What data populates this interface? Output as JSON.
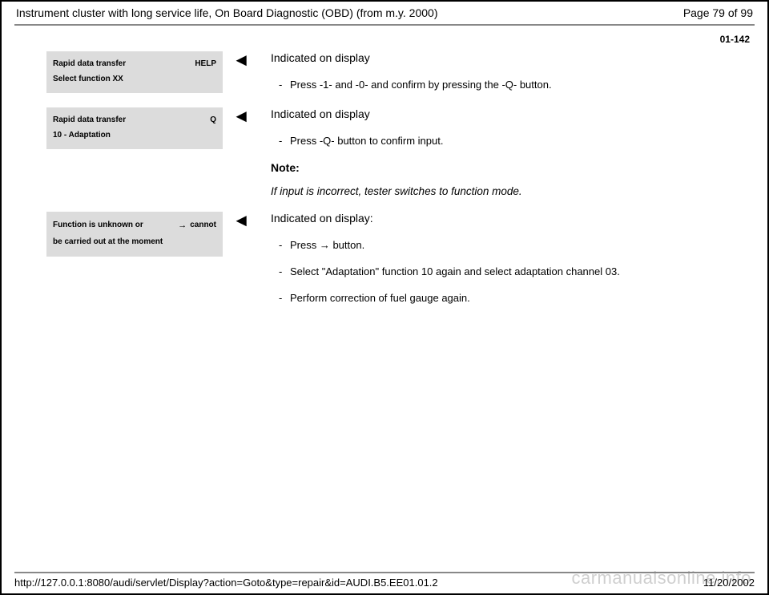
{
  "header": {
    "title": "Instrument cluster with long service life, On Board Diagnostic (OBD) (from m.y. 2000)",
    "page_label": "Page 79 of 99"
  },
  "section_number": "01-142",
  "blocks": [
    {
      "display": {
        "line1_left": "Rapid data transfer",
        "line1_right": "HELP",
        "line2_left": "Select function XX",
        "line2_right": ""
      },
      "heading": "Indicated on display",
      "bullets": [
        "Press -1- and -0- and confirm by pressing the -Q- button."
      ]
    },
    {
      "display": {
        "line1_left": "Rapid data transfer",
        "line1_right": "Q",
        "line2_left": "10 - Adaptation",
        "line2_right": ""
      },
      "heading": "Indicated on display",
      "bullets": [
        "Press -Q- button to confirm input."
      ],
      "note_label": "Note:",
      "note_text": "If input is incorrect, tester switches to function mode."
    },
    {
      "display": {
        "line1_left": "Function is unknown or",
        "line1_right_arrow": "→",
        "line1_right_text": "cannot",
        "line2_left": "be carried out at the moment",
        "line2_right": ""
      },
      "heading": "Indicated on display:",
      "bullets": [
        "Press → button.",
        "Select \"Adaptation\" function 10 again and select adaptation channel 03.",
        "Perform correction of fuel gauge again."
      ]
    }
  ],
  "arrow_glyph": "◄",
  "footer": {
    "url": "http://127.0.0.1:8080/audi/servlet/Display?action=Goto&type=repair&id=AUDI.B5.EE01.01.2",
    "date": "11/20/2002"
  },
  "watermark": "carmanualsonline.info",
  "colors": {
    "display_box_bg": "#dcdcdc",
    "divider": "#888888",
    "watermark": "#cfcfcf"
  }
}
